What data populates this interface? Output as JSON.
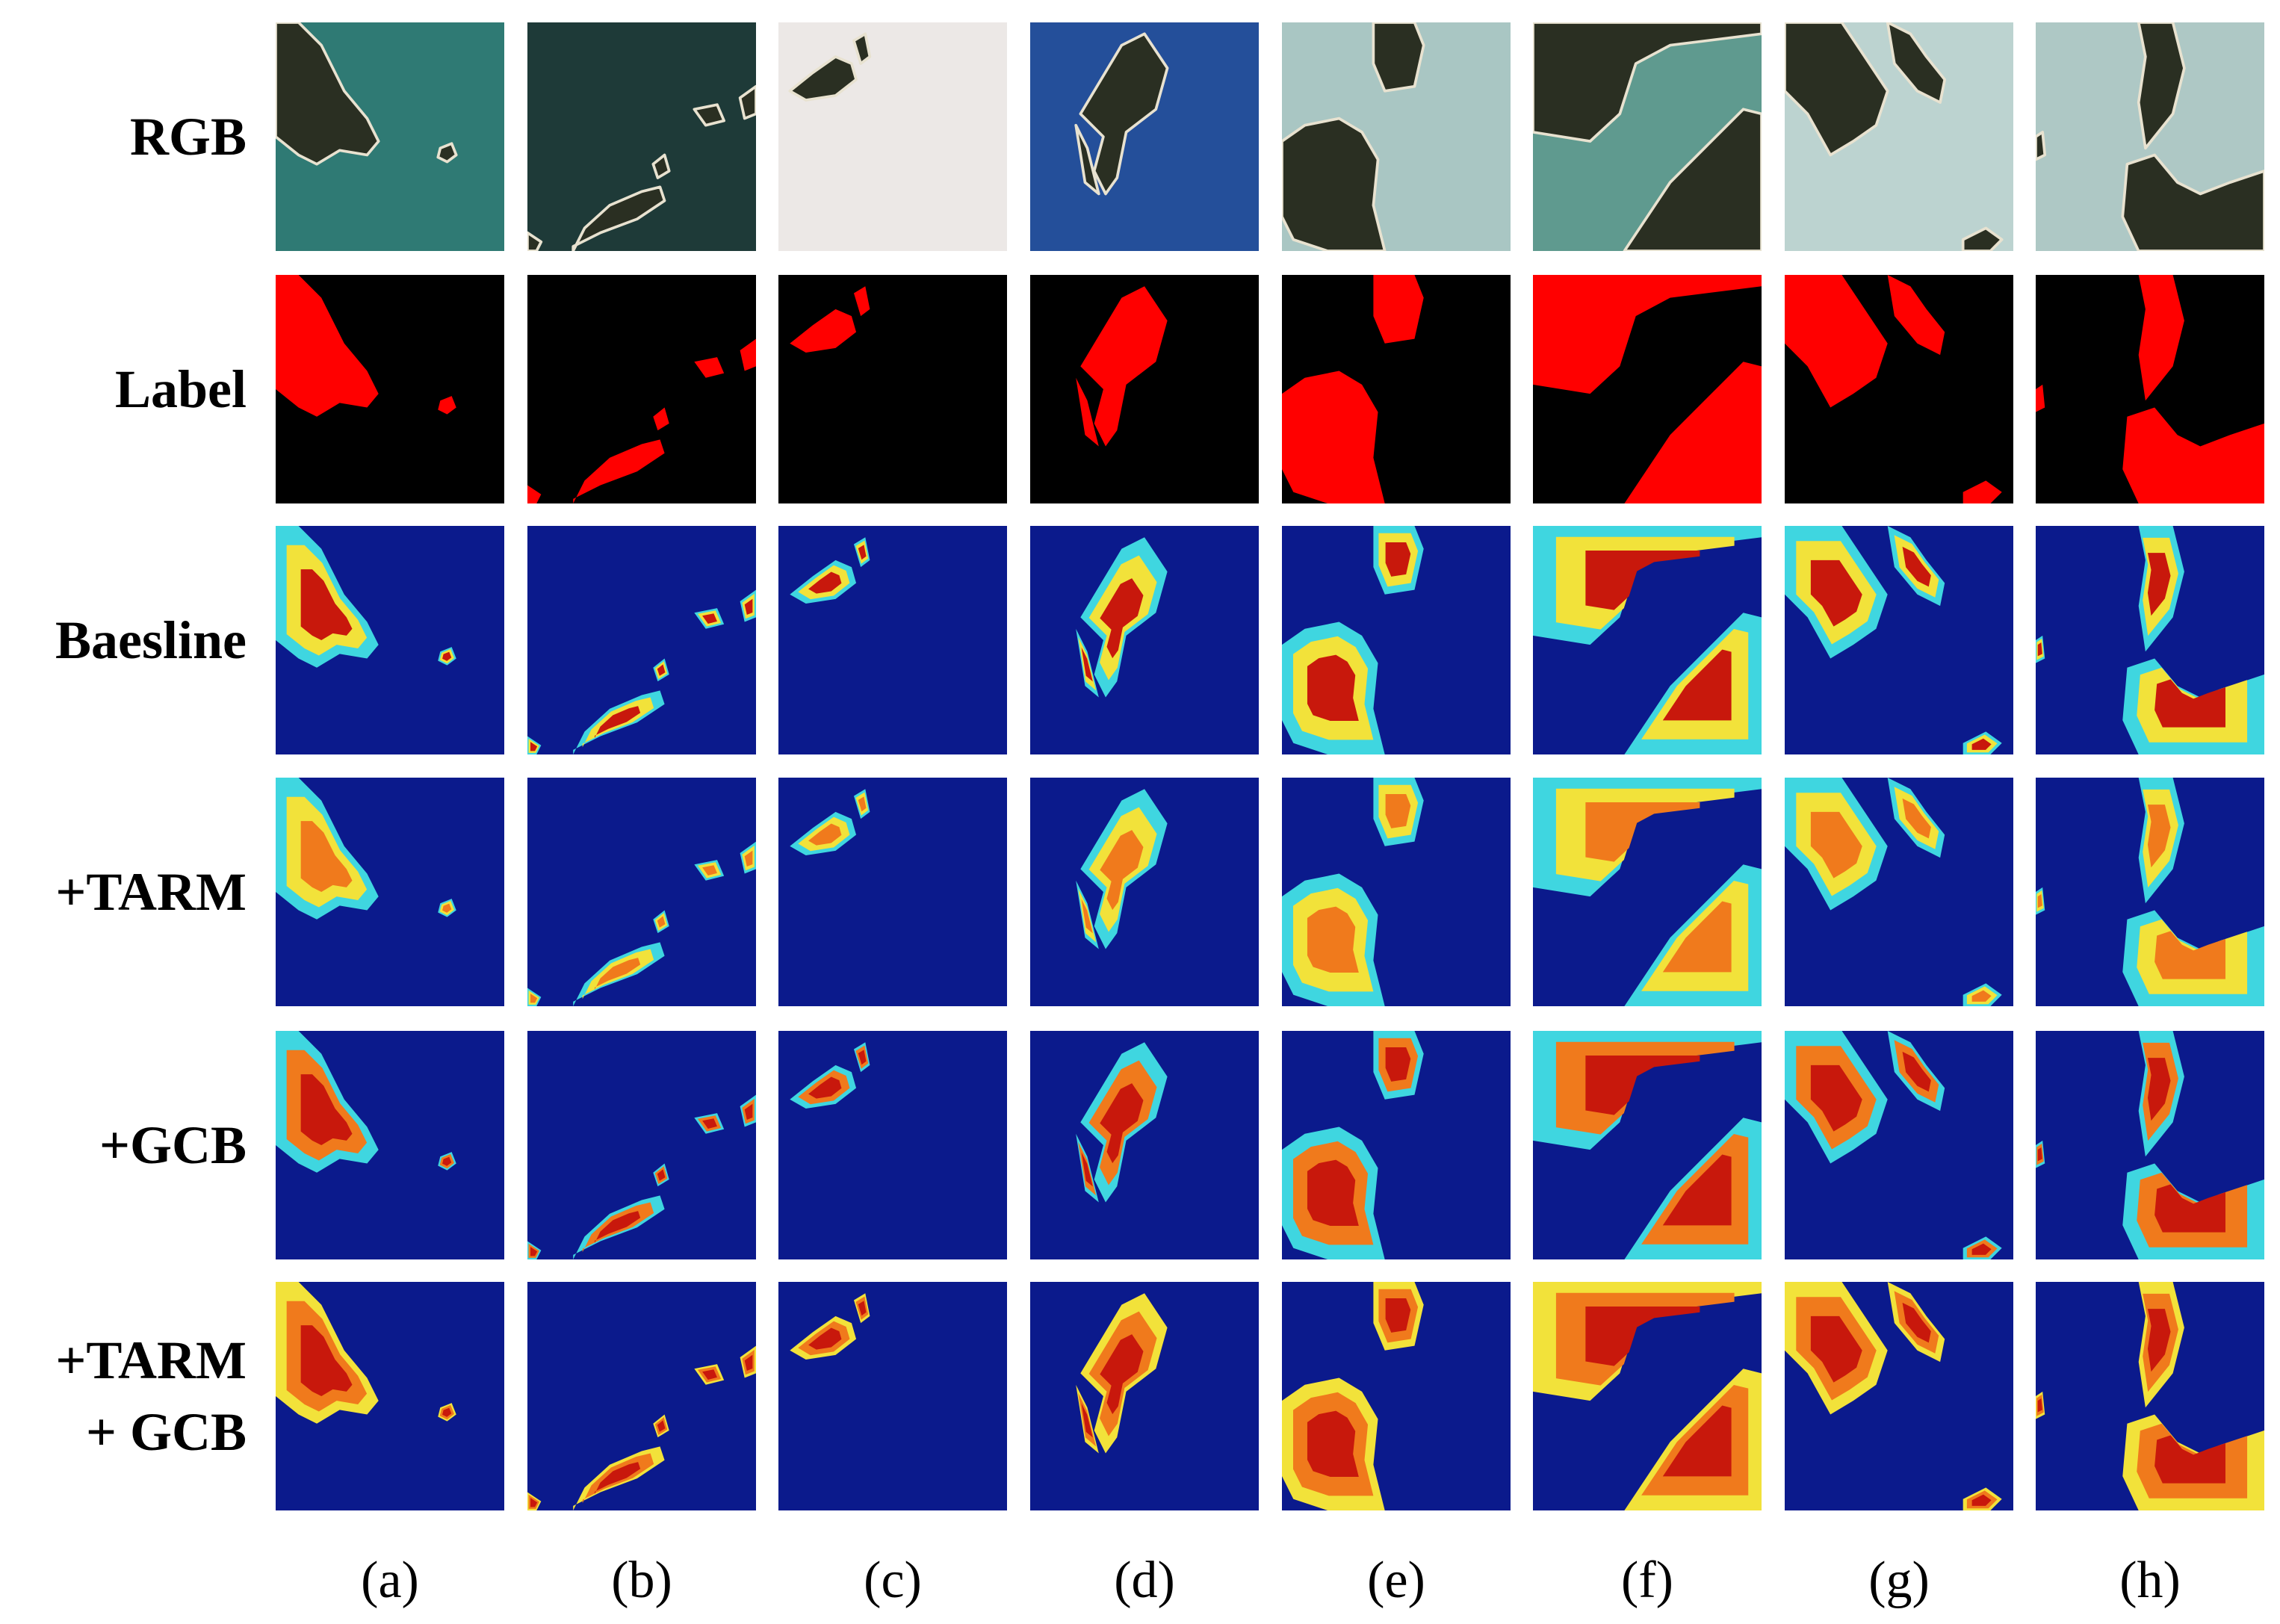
{
  "row_labels": [
    {
      "id": "rgb",
      "lines": [
        "RGB"
      ]
    },
    {
      "id": "label",
      "lines": [
        "Label"
      ]
    },
    {
      "id": "baesline",
      "lines": [
        "Baesline"
      ]
    },
    {
      "id": "tarm",
      "lines": [
        "+TARM"
      ]
    },
    {
      "id": "gcb",
      "lines": [
        "+GCB"
      ]
    },
    {
      "id": "tarm-gcb",
      "lines": [
        "+TARM",
        "+ GCB"
      ]
    }
  ],
  "column_labels": [
    "(a)",
    "(b)",
    "(c)",
    "(d)",
    "(e)",
    "(f)",
    "(g)",
    "(h)"
  ],
  "colors": {
    "label_background": "#000000",
    "label_foreground": "#ff0000",
    "heatmap_background": "#0b1a8c",
    "heatmap_cyan": "#3fd6e0",
    "heatmap_yellow": "#f2e23a",
    "heatmap_orange": "#f07a1c",
    "heatmap_red": "#c8180c",
    "rgb_sea": [
      "#2f7a74",
      "#1e3a38",
      "#ece8e6",
      "#244f9a",
      "#a9c6c3",
      "#5f9a8f",
      "#bcd3d0",
      "#aec8c5"
    ],
    "rgb_land": "#2a2f22"
  }
}
